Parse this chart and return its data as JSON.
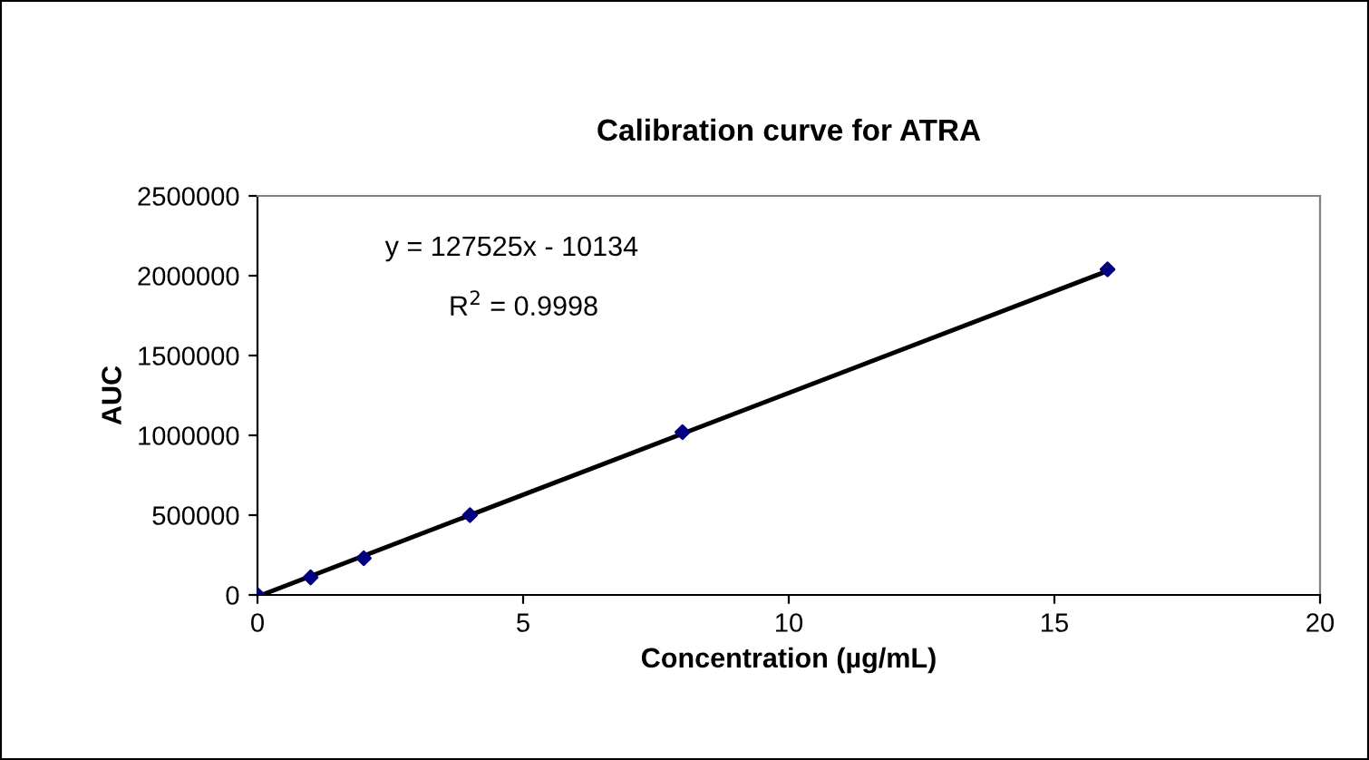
{
  "chart_data": {
    "type": "scatter",
    "title": "Calibration curve for ATRA",
    "xlabel": "Concentration (µg/mL)",
    "ylabel": "AUC",
    "annotations": [
      "y = 127525x - 10134",
      "R$^{2}$ = 0.9998"
    ],
    "series": [
      {
        "color": "#000080",
        "marker": "diamond",
        "x": [
          0,
          1,
          2,
          4,
          8,
          16
        ],
        "values": [
          0,
          110000,
          230000,
          500000,
          1020000,
          2040000
        ]
      },
      {
        "type": "line",
        "color": "#000000",
        "marker": "none",
        "line_style": "solid",
        "x": [
          0.1,
          16
        ],
        "values": [
          3000,
          2030000
        ]
      }
    ],
    "xlim": [
      0,
      20
    ],
    "xticks": [
      0,
      5,
      10,
      15,
      20
    ],
    "ylim": [
      0,
      2500000
    ],
    "yticks": [
      0,
      500000,
      1000000,
      1500000,
      2000000,
      2500000
    ],
    "grid": false,
    "legend": false
  }
}
